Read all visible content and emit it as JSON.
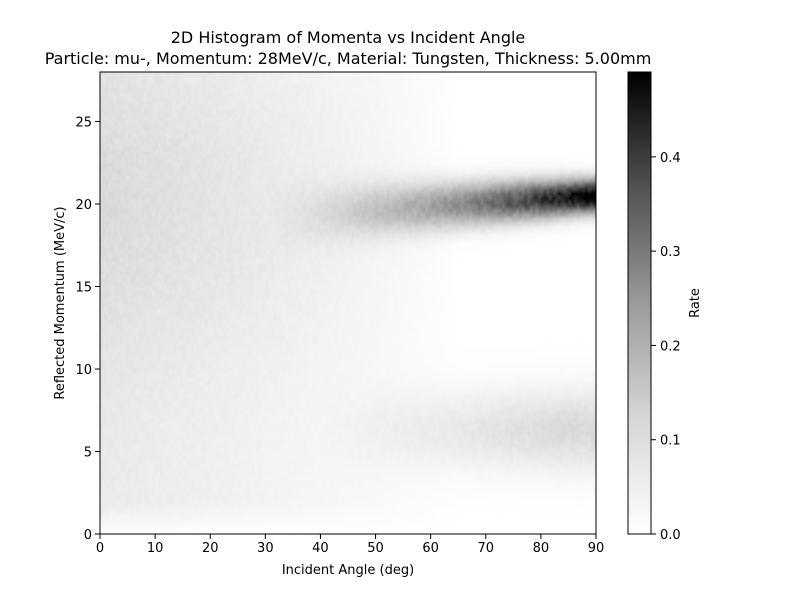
{
  "chart_data": {
    "type": "heatmap",
    "title": "2D Histogram of Momenta vs Incident Angle",
    "subtitle": "Particle: mu-, Momentum: 28MeV/c, Material: Tungsten, Thickness: 5.00mm",
    "xlabel": "Incident Angle (deg)",
    "ylabel": "Reflected Momentum (MeV/c)",
    "colorbar_label": "Rate",
    "xlim": [
      0,
      90
    ],
    "ylim": [
      0,
      28
    ],
    "x_ticks": [
      "0",
      "10",
      "20",
      "30",
      "40",
      "50",
      "60",
      "70",
      "80",
      "90"
    ],
    "y_ticks": [
      "0",
      "5",
      "10",
      "15",
      "20",
      "25"
    ],
    "colorbar_ticks": [
      "0.0",
      "0.1",
      "0.2",
      "0.3",
      "0.4"
    ],
    "colorbar_range": [
      0,
      0.49
    ],
    "colormap": "Greys",
    "features": [
      {
        "description": "reflected momentum ridge",
        "angle_range": [
          30,
          90
        ],
        "momentum_center_start": 19.2,
        "momentum_center_end": 20.5,
        "peak_rate": 0.49
      },
      {
        "description": "low momentum band",
        "angle_range": [
          55,
          90
        ],
        "momentum_center": 6.3,
        "peak_rate": 0.05
      },
      {
        "description": "diffuse background",
        "angle_range": [
          0,
          60
        ],
        "momentum_range": [
          10,
          28
        ],
        "peak_rate": 0.05
      }
    ]
  }
}
